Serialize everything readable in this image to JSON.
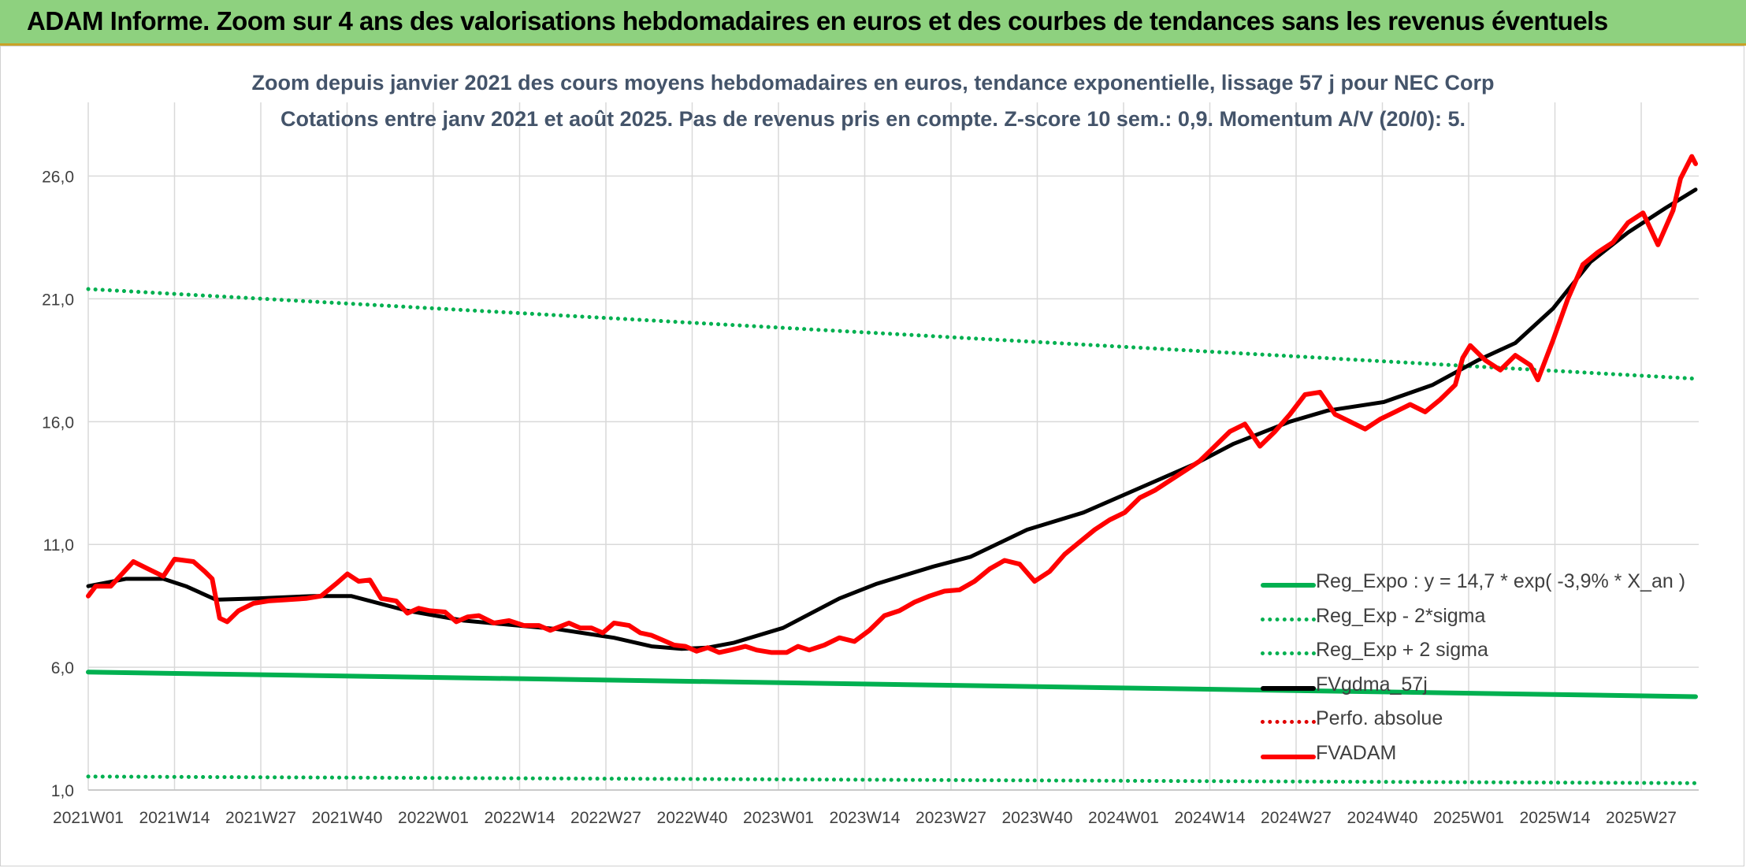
{
  "banner": {
    "title": "ADAM Informe. Zoom sur 4 ans des valorisations hebdomadaires en euros et des courbes de tendances sans les revenus éventuels"
  },
  "chart_data": {
    "type": "line",
    "title": "Zoom depuis janvier 2021 des cours moyens hebdomadaires en euros, tendance exponentielle, lissage 57 j pour NEC Corp",
    "subtitle": "Cotations entre janv 2021 et août 2025. Pas de revenus pris en compte. Z-score 10 sem.: 0,9. Momentum A/V (20/0): 5.",
    "xlabel": "",
    "ylabel": "",
    "x_tick_labels": [
      "2021W01",
      "2021W14",
      "2021W27",
      "2021W40",
      "2022W01",
      "2022W14",
      "2022W27",
      "2022W40",
      "2023W01",
      "2023W14",
      "2023W27",
      "2023W40",
      "2024W01",
      "2024W14",
      "2024W27",
      "2024W40",
      "2025W01",
      "2025W14",
      "2025W27"
    ],
    "y_tick_labels": [
      "1,0",
      "6,0",
      "11,0",
      "16,0",
      "21,0",
      "26,0"
    ],
    "ylim": [
      1.0,
      29.0
    ],
    "grid": true,
    "legend_position": "bottom-right",
    "x_count": 243,
    "series": [
      {
        "name": "Reg_Expo : y = 14,7 * exp( -3,9% *  X_an )",
        "color": "#00b050",
        "style": "solid",
        "points": [
          [
            0,
            5.8
          ],
          [
            242,
            4.8
          ]
        ]
      },
      {
        "name": "Reg_Exp - 2*sigma",
        "color": "#00b050",
        "style": "dotted",
        "points": [
          [
            0,
            1.55
          ],
          [
            242,
            1.28
          ]
        ]
      },
      {
        "name": "Reg_Exp + 2 sigma",
        "color": "#00b050",
        "style": "dotted",
        "points": [
          [
            0,
            21.4
          ],
          [
            242,
            17.75
          ]
        ]
      },
      {
        "name": "FVgdma_57j",
        "color": "#000000",
        "style": "solid",
        "points": [
          [
            0,
            9.3
          ],
          [
            10,
            9.6
          ],
          [
            20,
            9.6
          ],
          [
            26,
            9.3
          ],
          [
            34,
            8.75
          ],
          [
            45,
            8.8
          ],
          [
            60,
            8.9
          ],
          [
            70,
            8.9
          ],
          [
            85,
            8.3
          ],
          [
            100,
            7.9
          ],
          [
            125,
            7.55
          ],
          [
            140,
            7.2
          ],
          [
            150,
            6.85
          ],
          [
            158,
            6.75
          ],
          [
            165,
            6.8
          ],
          [
            172,
            7.0
          ],
          [
            185,
            7.6
          ],
          [
            200,
            8.8
          ],
          [
            210,
            9.4
          ],
          [
            225,
            10.1
          ],
          [
            235,
            10.5
          ],
          [
            250,
            11.6
          ],
          [
            265,
            12.3
          ],
          [
            280,
            13.3
          ],
          [
            295,
            14.3
          ],
          [
            305,
            15.1
          ],
          [
            320,
            16.0
          ],
          [
            330,
            16.45
          ],
          [
            345,
            16.8
          ],
          [
            358,
            17.5
          ],
          [
            370,
            18.5
          ],
          [
            380,
            19.2
          ],
          [
            390,
            20.6
          ],
          [
            400,
            22.5
          ],
          [
            410,
            23.7
          ],
          [
            420,
            24.7
          ],
          [
            428,
            25.45
          ]
        ]
      },
      {
        "name": "Perfo. absolue",
        "color": "#e00000",
        "style": "dotted",
        "points": []
      },
      {
        "name": "FVADAM",
        "color": "#ff0000",
        "style": "solid",
        "points": [
          [
            0,
            8.9
          ],
          [
            2,
            9.3
          ],
          [
            6,
            9.3
          ],
          [
            12,
            10.3
          ],
          [
            16,
            10.0
          ],
          [
            20,
            9.7
          ],
          [
            23,
            10.4
          ],
          [
            28,
            10.3
          ],
          [
            31,
            9.9
          ],
          [
            33,
            9.6
          ],
          [
            35,
            8.0
          ],
          [
            37,
            7.85
          ],
          [
            40,
            8.3
          ],
          [
            44,
            8.6
          ],
          [
            48,
            8.7
          ],
          [
            53,
            8.75
          ],
          [
            58,
            8.8
          ],
          [
            62,
            8.9
          ],
          [
            66,
            9.4
          ],
          [
            69,
            9.8
          ],
          [
            72,
            9.5
          ],
          [
            75,
            9.55
          ],
          [
            78,
            8.8
          ],
          [
            82,
            8.7
          ],
          [
            85,
            8.2
          ],
          [
            88,
            8.4
          ],
          [
            91,
            8.3
          ],
          [
            95,
            8.25
          ],
          [
            98,
            7.85
          ],
          [
            101,
            8.05
          ],
          [
            104,
            8.1
          ],
          [
            108,
            7.8
          ],
          [
            112,
            7.9
          ],
          [
            116,
            7.7
          ],
          [
            120,
            7.7
          ],
          [
            123,
            7.5
          ],
          [
            128,
            7.8
          ],
          [
            131,
            7.6
          ],
          [
            134,
            7.6
          ],
          [
            137,
            7.4
          ],
          [
            140,
            7.8
          ],
          [
            144,
            7.7
          ],
          [
            147,
            7.4
          ],
          [
            150,
            7.3
          ],
          [
            153,
            7.1
          ],
          [
            156,
            6.9
          ],
          [
            159,
            6.85
          ],
          [
            162,
            6.65
          ],
          [
            165,
            6.8
          ],
          [
            168,
            6.6
          ],
          [
            171,
            6.7
          ],
          [
            175,
            6.85
          ],
          [
            178,
            6.7
          ],
          [
            182,
            6.6
          ],
          [
            186,
            6.6
          ],
          [
            189,
            6.85
          ],
          [
            192,
            6.7
          ],
          [
            196,
            6.9
          ],
          [
            200,
            7.2
          ],
          [
            204,
            7.05
          ],
          [
            208,
            7.5
          ],
          [
            212,
            8.1
          ],
          [
            216,
            8.3
          ],
          [
            220,
            8.65
          ],
          [
            224,
            8.9
          ],
          [
            228,
            9.1
          ],
          [
            232,
            9.15
          ],
          [
            236,
            9.5
          ],
          [
            240,
            10.0
          ],
          [
            244,
            10.35
          ],
          [
            248,
            10.2
          ],
          [
            252,
            9.5
          ],
          [
            256,
            9.9
          ],
          [
            260,
            10.6
          ],
          [
            264,
            11.1
          ],
          [
            268,
            11.6
          ],
          [
            272,
            12.0
          ],
          [
            276,
            12.3
          ],
          [
            280,
            12.9
          ],
          [
            284,
            13.2
          ],
          [
            288,
            13.6
          ],
          [
            292,
            14.0
          ],
          [
            296,
            14.4
          ],
          [
            300,
            15.0
          ],
          [
            304,
            15.6
          ],
          [
            308,
            15.9
          ],
          [
            312,
            15.0
          ],
          [
            316,
            15.6
          ],
          [
            320,
            16.3
          ],
          [
            324,
            17.1
          ],
          [
            328,
            17.2
          ],
          [
            332,
            16.3
          ],
          [
            336,
            16.0
          ],
          [
            340,
            15.7
          ],
          [
            344,
            16.1
          ],
          [
            348,
            16.4
          ],
          [
            352,
            16.7
          ],
          [
            356,
            16.4
          ],
          [
            360,
            16.9
          ],
          [
            364,
            17.5
          ],
          [
            366,
            18.6
          ],
          [
            368,
            19.1
          ],
          [
            372,
            18.5
          ],
          [
            376,
            18.1
          ],
          [
            380,
            18.7
          ],
          [
            384,
            18.3
          ],
          [
            386,
            17.7
          ],
          [
            390,
            19.3
          ],
          [
            394,
            21.0
          ],
          [
            398,
            22.4
          ],
          [
            402,
            22.9
          ],
          [
            406,
            23.3
          ],
          [
            410,
            24.1
          ],
          [
            414,
            24.5
          ],
          [
            418,
            23.2
          ],
          [
            422,
            24.6
          ],
          [
            424,
            25.9
          ],
          [
            427,
            26.8
          ],
          [
            428,
            26.5
          ]
        ]
      }
    ]
  }
}
